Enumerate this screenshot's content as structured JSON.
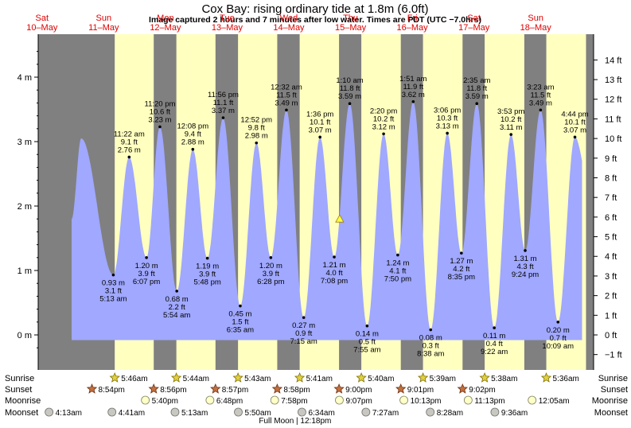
{
  "header": {
    "title": "Cox Bay: rising  ordinary tide at 1.8m (6.0ft)",
    "subtitle": "Image captured 2 hours and 7 minutes after low water. Times are PDT (UTC −7.0hrs)"
  },
  "colors": {
    "night": "#808080",
    "day": "#ffffc0",
    "tide_fill": "#a0a8ff",
    "day_label": "#e00000"
  },
  "days": [
    {
      "dow": "Sat",
      "date": "10–May"
    },
    {
      "dow": "Sun",
      "date": "11–May"
    },
    {
      "dow": "Mon",
      "date": "12–May"
    },
    {
      "dow": "Tue",
      "date": "13–May"
    },
    {
      "dow": "Wed",
      "date": "14–May"
    },
    {
      "dow": "Thu",
      "date": "15–May"
    },
    {
      "dow": "Fri",
      "date": "16–May"
    },
    {
      "dow": "Sat",
      "date": "17–May"
    },
    {
      "dow": "Sun",
      "date": "18–May"
    }
  ],
  "chart_data": {
    "type": "area",
    "ylabel_left": "",
    "ylabel_right": "",
    "ylim_m": [
      -0.3,
      4.6
    ],
    "left_ticks": [
      "0 m",
      "1 m",
      "2 m",
      "3 m",
      "4 m"
    ],
    "left_tick_values": [
      0,
      1,
      2,
      3,
      4
    ],
    "right_ticks": [
      "−1 ft",
      "0 ft",
      "1 ft",
      "2 ft",
      "3 ft",
      "4 ft",
      "5 ft",
      "6 ft",
      "7 ft",
      "8 ft",
      "9 ft",
      "10 ft",
      "11 ft",
      "12 ft",
      "13 ft",
      "14 ft"
    ],
    "right_tick_values_ft": [
      -1,
      0,
      1,
      2,
      3,
      4,
      5,
      6,
      7,
      8,
      9,
      10,
      11,
      12,
      13,
      14
    ],
    "x_start": "2025-05-10T00:00",
    "x_end": "2025-05-19T00:00",
    "extremes": [
      {
        "time": "2025-05-10T16:45",
        "m": 3.05,
        "labels": []
      },
      {
        "time": "2025-05-11T05:13",
        "m": 0.93,
        "labels": [
          "0.93 m",
          "3.1 ft",
          "5:13 am"
        ],
        "kind": "low"
      },
      {
        "time": "2025-05-11T11:22",
        "m": 2.76,
        "labels": [
          "11:22 am",
          "9.1 ft",
          "2.76 m"
        ],
        "kind": "high"
      },
      {
        "time": "2025-05-11T18:07",
        "m": 1.2,
        "labels": [
          "1.20 m",
          "3.9 ft",
          "6:07 pm"
        ],
        "kind": "low"
      },
      {
        "time": "2025-05-11T23:20",
        "m": 3.23,
        "labels": [
          "11:20 pm",
          "10.6 ft",
          "3.23 m"
        ],
        "kind": "high"
      },
      {
        "time": "2025-05-12T05:54",
        "m": 0.68,
        "labels": [
          "0.68 m",
          "2.2 ft",
          "5:54 am"
        ],
        "kind": "low"
      },
      {
        "time": "2025-05-12T12:08",
        "m": 2.88,
        "labels": [
          "12:08 pm",
          "9.4 ft",
          "2.88 m"
        ],
        "kind": "high"
      },
      {
        "time": "2025-05-12T17:48",
        "m": 1.19,
        "labels": [
          "1.19 m",
          "3.9 ft",
          "5:48 pm"
        ],
        "kind": "low"
      },
      {
        "time": "2025-05-12T23:56",
        "m": 3.37,
        "labels": [
          "11:56 pm",
          "11.1 ft",
          "3.37 m"
        ],
        "kind": "high"
      },
      {
        "time": "2025-05-13T06:35",
        "m": 0.45,
        "labels": [
          "0.45 m",
          "1.5 ft",
          "6:35 am"
        ],
        "kind": "low"
      },
      {
        "time": "2025-05-13T12:52",
        "m": 2.98,
        "labels": [
          "12:52 pm",
          "9.8 ft",
          "2.98 m"
        ],
        "kind": "high"
      },
      {
        "time": "2025-05-13T18:28",
        "m": 1.2,
        "labels": [
          "1.20 m",
          "3.9 ft",
          "6:28 pm"
        ],
        "kind": "low"
      },
      {
        "time": "2025-05-14T00:32",
        "m": 3.49,
        "labels": [
          "12:32 am",
          "11.5 ft",
          "3.49 m"
        ],
        "kind": "high"
      },
      {
        "time": "2025-05-14T07:15",
        "m": 0.27,
        "labels": [
          "0.27 m",
          "0.9 ft",
          "7:15 am"
        ],
        "kind": "low"
      },
      {
        "time": "2025-05-14T13:36",
        "m": 3.07,
        "labels": [
          "1:36 pm",
          "10.1 ft",
          "3.07 m"
        ],
        "kind": "high"
      },
      {
        "time": "2025-05-14T19:08",
        "m": 1.21,
        "labels": [
          "1.21 m",
          "4.0 ft",
          "7:08 pm"
        ],
        "kind": "low"
      },
      {
        "time": "2025-05-15T01:10",
        "m": 3.59,
        "labels": [
          "1:10 am",
          "11.8 ft",
          "3.59 m"
        ],
        "kind": "high"
      },
      {
        "time": "2025-05-15T07:55",
        "m": 0.14,
        "labels": [
          "0.14 m",
          "0.5 ft",
          "7:55 am"
        ],
        "kind": "low"
      },
      {
        "time": "2025-05-15T14:20",
        "m": 3.12,
        "labels": [
          "2:20 pm",
          "10.2 ft",
          "3.12 m"
        ],
        "kind": "high"
      },
      {
        "time": "2025-05-15T19:50",
        "m": 1.24,
        "labels": [
          "1.24 m",
          "4.1 ft",
          "7:50 pm"
        ],
        "kind": "low"
      },
      {
        "time": "2025-05-16T01:51",
        "m": 3.62,
        "labels": [
          "1:51 am",
          "11.9 ft",
          "3.62 m"
        ],
        "kind": "high"
      },
      {
        "time": "2025-05-16T08:38",
        "m": 0.08,
        "labels": [
          "0.08 m",
          "0.3 ft",
          "8:38 am"
        ],
        "kind": "low"
      },
      {
        "time": "2025-05-16T15:06",
        "m": 3.13,
        "labels": [
          "3:06 pm",
          "10.3 ft",
          "3.13 m"
        ],
        "kind": "high"
      },
      {
        "time": "2025-05-16T20:35",
        "m": 1.27,
        "labels": [
          "1.27 m",
          "4.2 ft",
          "8:35 pm"
        ],
        "kind": "low"
      },
      {
        "time": "2025-05-17T02:35",
        "m": 3.59,
        "labels": [
          "2:35 am",
          "11.8 ft",
          "3.59 m"
        ],
        "kind": "high"
      },
      {
        "time": "2025-05-17T09:22",
        "m": 0.11,
        "labels": [
          "0.11 m",
          "0.4 ft",
          "9:22 am"
        ],
        "kind": "low"
      },
      {
        "time": "2025-05-17T15:53",
        "m": 3.11,
        "labels": [
          "3:53 pm",
          "10.2 ft",
          "3.11 m"
        ],
        "kind": "high"
      },
      {
        "time": "2025-05-17T21:24",
        "m": 1.31,
        "labels": [
          "1.31 m",
          "4.3 ft",
          "9:24 pm"
        ],
        "kind": "low"
      },
      {
        "time": "2025-05-18T03:23",
        "m": 3.49,
        "labels": [
          "3:23 am",
          "11.5 ft",
          "3.49 m"
        ],
        "kind": "high"
      },
      {
        "time": "2025-05-18T10:09",
        "m": 0.2,
        "labels": [
          "0.20 m",
          "0.7 ft",
          "10:09 am"
        ],
        "kind": "low"
      },
      {
        "time": "2025-05-18T16:44",
        "m": 3.07,
        "labels": [
          "4:44 pm",
          "10.1 ft",
          "3.07 m"
        ],
        "kind": "high"
      }
    ],
    "series_end": {
      "time": "2025-05-18T19:30",
      "m": 2.7
    },
    "current": {
      "time": "2025-05-14T21:15",
      "m": 1.8
    }
  },
  "astro": {
    "labels": [
      "Sunrise",
      "Sunset",
      "Moonrise",
      "Moonset"
    ],
    "sunrise": [
      {
        "time": "2025-05-11T05:46",
        "text": "5:46am"
      },
      {
        "time": "2025-05-12T05:44",
        "text": "5:44am"
      },
      {
        "time": "2025-05-13T05:43",
        "text": "5:43am"
      },
      {
        "time": "2025-05-14T05:41",
        "text": "5:41am"
      },
      {
        "time": "2025-05-15T05:40",
        "text": "5:40am"
      },
      {
        "time": "2025-05-16T05:39",
        "text": "5:39am"
      },
      {
        "time": "2025-05-17T05:38",
        "text": "5:38am"
      },
      {
        "time": "2025-05-18T05:36",
        "text": "5:36am"
      }
    ],
    "sunset": [
      {
        "time": "2025-05-10T20:54",
        "text": "8:54pm"
      },
      {
        "time": "2025-05-11T20:56",
        "text": "8:56pm"
      },
      {
        "time": "2025-05-12T20:57",
        "text": "8:57pm"
      },
      {
        "time": "2025-05-13T20:58",
        "text": "8:58pm"
      },
      {
        "time": "2025-05-14T21:00",
        "text": "9:00pm"
      },
      {
        "time": "2025-05-15T21:01",
        "text": "9:01pm"
      },
      {
        "time": "2025-05-16T21:02",
        "text": "9:02pm"
      }
    ],
    "moonrise": [
      {
        "time": "2025-05-11T17:40",
        "text": "5:40pm"
      },
      {
        "time": "2025-05-12T18:48",
        "text": "6:48pm"
      },
      {
        "time": "2025-05-13T19:58",
        "text": "7:58pm"
      },
      {
        "time": "2025-05-14T21:07",
        "text": "9:07pm"
      },
      {
        "time": "2025-05-15T22:13",
        "text": "10:13pm"
      },
      {
        "time": "2025-05-16T23:13",
        "text": "11:13pm"
      },
      {
        "time": "2025-05-18T00:05",
        "text": "12:05am"
      }
    ],
    "moonset": [
      {
        "time": "2025-05-10T04:13",
        "text": "4:13am"
      },
      {
        "time": "2025-05-11T04:41",
        "text": "4:41am"
      },
      {
        "time": "2025-05-12T05:13",
        "text": "5:13am"
      },
      {
        "time": "2025-05-13T05:50",
        "text": "5:50am"
      },
      {
        "time": "2025-05-14T06:34",
        "text": "6:34am"
      },
      {
        "time": "2025-05-15T07:27",
        "text": "7:27am"
      },
      {
        "time": "2025-05-16T08:28",
        "text": "8:28am"
      },
      {
        "time": "2025-05-17T09:36",
        "text": "9:36am"
      }
    ],
    "full_moon": {
      "time": "2025-05-12T12:18",
      "text": "Full Moon | 12:18pm"
    }
  }
}
